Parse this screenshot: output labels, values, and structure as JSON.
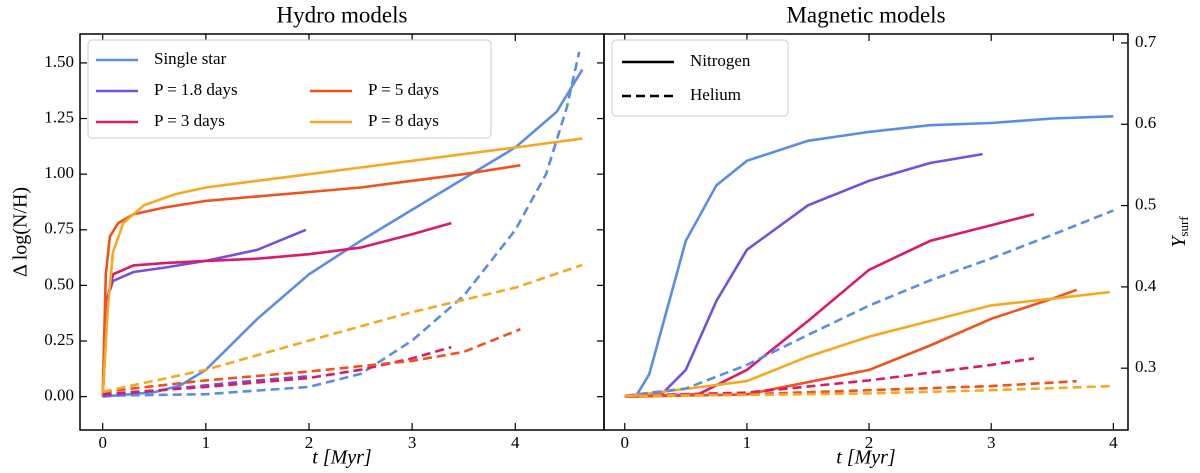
{
  "chart_data": [
    {
      "type": "line",
      "title": "Hydro models",
      "xlabel": "t [Myr]",
      "ylabel": "Δ log(N/H)",
      "xlim": [
        -0.22,
        4.86
      ],
      "ylim": [
        -0.15,
        1.63
      ],
      "y2lim": [
        0.224,
        0.711
      ],
      "xticks": [
        0,
        1,
        2,
        3,
        4
      ],
      "yticks": [
        {
          "value": 0,
          "label": "0.00"
        },
        0.25,
        {
          "value": 0.5,
          "label": "0.50"
        },
        0.75,
        {
          "value": 1,
          "label": "1.00"
        },
        1.25,
        {
          "value": 1.5,
          "label": "1.50"
        }
      ],
      "legend": "upper left",
      "series": [
        {
          "name": "Single star",
          "color": "#5b8de6",
          "dash": false,
          "x": [
            0,
            0.5,
            0.75,
            1,
            1.5,
            2,
            2.5,
            3,
            3.5,
            4,
            4.4,
            4.65
          ],
          "values": [
            0,
            0.02,
            0.05,
            0.12,
            0.35,
            0.55,
            0.7,
            0.84,
            0.98,
            1.12,
            1.28,
            1.47
          ]
        },
        {
          "name": "P = 1.8 days",
          "color": "#7450e0",
          "dash": false,
          "x": [
            0,
            0.05,
            0.1,
            0.3,
            0.6,
            1,
            1.5,
            1.97
          ],
          "values": [
            0,
            0.45,
            0.52,
            0.56,
            0.58,
            0.61,
            0.66,
            0.75
          ]
        },
        {
          "name": "P = 3 days",
          "color": "#d81b6a",
          "dash": false,
          "x": [
            0,
            0.05,
            0.1,
            0.3,
            0.6,
            1,
            1.5,
            2,
            2.5,
            3,
            3.38
          ],
          "values": [
            0,
            0.45,
            0.55,
            0.59,
            0.6,
            0.61,
            0.62,
            0.64,
            0.67,
            0.73,
            0.78
          ]
        },
        {
          "name": "P = 5 days",
          "color": "#f0521c",
          "dash": false,
          "x": [
            0,
            0.03,
            0.07,
            0.15,
            0.3,
            0.6,
            1,
            1.5,
            2,
            2.5,
            3,
            3.5,
            4.05
          ],
          "values": [
            0,
            0.55,
            0.72,
            0.78,
            0.82,
            0.85,
            0.88,
            0.9,
            0.92,
            0.94,
            0.97,
            1.0,
            1.04
          ]
        },
        {
          "name": "P = 8 days",
          "color": "#f7a823",
          "dash": false,
          "x": [
            0,
            0.05,
            0.1,
            0.2,
            0.4,
            0.7,
            1,
            1.5,
            2,
            2.5,
            3,
            3.5,
            4,
            4.65
          ],
          "values": [
            0,
            0.4,
            0.65,
            0.78,
            0.86,
            0.91,
            0.94,
            0.97,
            1.0,
            1.03,
            1.06,
            1.09,
            1.12,
            1.16
          ]
        },
        {
          "color": "#5b8de6",
          "dash": true,
          "axis": "y2",
          "x": [
            0,
            1,
            2,
            2.5,
            3,
            3.5,
            4,
            4.3,
            4.5,
            4.62
          ],
          "values": [
            0.266,
            0.268,
            0.277,
            0.293,
            0.334,
            0.389,
            0.47,
            0.539,
            0.621,
            0.689
          ]
        },
        {
          "color": "#7450e0",
          "dash": true,
          "axis": "y2",
          "x": [
            0,
            0.5,
            1,
            1.5,
            2
          ],
          "values": [
            0.266,
            0.272,
            0.279,
            0.285,
            0.29
          ]
        },
        {
          "color": "#d81b6a",
          "dash": true,
          "axis": "y2",
          "x": [
            0,
            1,
            2,
            2.5,
            3,
            3.38
          ],
          "values": [
            0.268,
            0.277,
            0.288,
            0.298,
            0.312,
            0.326
          ]
        },
        {
          "color": "#f0521c",
          "dash": true,
          "axis": "y2",
          "x": [
            0,
            1,
            2,
            3,
            3.5,
            4.05
          ],
          "values": [
            0.271,
            0.285,
            0.296,
            0.309,
            0.32,
            0.348
          ]
        },
        {
          "color": "#f7a823",
          "dash": true,
          "axis": "y2",
          "x": [
            0,
            1,
            2,
            3,
            4,
            4.65
          ],
          "values": [
            0.271,
            0.298,
            0.334,
            0.369,
            0.399,
            0.427
          ]
        }
      ]
    },
    {
      "type": "line",
      "title": "Magnetic models",
      "xlabel": "t [Myr]",
      "y2label": {
        "main": "Y",
        "sub": "surf"
      },
      "xlim": [
        -0.17,
        4.12
      ],
      "ylim": [
        -0.15,
        1.63
      ],
      "y2lim": [
        0.224,
        0.711
      ],
      "xticks": [
        0,
        1,
        2,
        3,
        4
      ],
      "y2ticks": [
        0.3,
        0.4,
        0.5,
        0.6,
        0.7
      ],
      "legend": "upper left",
      "legend_items": [
        {
          "label": "Nitrogen",
          "dash": false
        },
        {
          "label": "Helium",
          "dash": true
        }
      ],
      "series": [
        {
          "color": "#5b8de6",
          "dash": false,
          "x": [
            0,
            0.1,
            0.2,
            0.3,
            0.5,
            0.75,
            1,
            1.5,
            2,
            2.5,
            3,
            3.5,
            4
          ],
          "values": [
            0,
            0.01,
            0.1,
            0.3,
            0.7,
            0.95,
            1.06,
            1.15,
            1.19,
            1.22,
            1.23,
            1.25,
            1.26
          ]
        },
        {
          "color": "#7450e0",
          "dash": false,
          "x": [
            0,
            0.3,
            0.5,
            0.75,
            1,
            1.5,
            2,
            2.5,
            2.93
          ],
          "values": [
            0,
            0.01,
            0.12,
            0.43,
            0.66,
            0.86,
            0.97,
            1.05,
            1.09
          ]
        },
        {
          "color": "#d81b6a",
          "dash": false,
          "x": [
            0,
            0.6,
            1,
            1.5,
            2,
            2.5,
            3,
            3.35
          ],
          "values": [
            0,
            0.01,
            0.12,
            0.34,
            0.57,
            0.7,
            0.77,
            0.82
          ]
        },
        {
          "color": "#f0521c",
          "dash": false,
          "x": [
            0,
            1,
            2,
            2.5,
            3,
            3.5,
            3.7
          ],
          "values": [
            0,
            0.01,
            0.12,
            0.23,
            0.35,
            0.44,
            0.48
          ]
        },
        {
          "color": "#f7a823",
          "dash": false,
          "x": [
            0,
            1,
            1.5,
            2,
            2.5,
            3,
            3.5,
            3.97
          ],
          "values": [
            0,
            0.07,
            0.18,
            0.27,
            0.34,
            0.41,
            0.44,
            0.47
          ]
        },
        {
          "color": "#5b8de6",
          "dash": true,
          "axis": "y2",
          "x": [
            0,
            0.5,
            1,
            1.5,
            2,
            2.5,
            3,
            3.5,
            4
          ],
          "values": [
            0.266,
            0.275,
            0.304,
            0.341,
            0.377,
            0.408,
            0.435,
            0.464,
            0.494
          ]
        },
        {
          "color": "#d81b6a",
          "dash": true,
          "axis": "y2",
          "x": [
            0,
            1,
            2,
            3,
            3.35
          ],
          "values": [
            0.266,
            0.27,
            0.285,
            0.304,
            0.312
          ]
        },
        {
          "color": "#f0521c",
          "dash": true,
          "axis": "y2",
          "x": [
            0,
            1,
            2,
            3,
            3.7
          ],
          "values": [
            0.266,
            0.268,
            0.273,
            0.278,
            0.284
          ]
        },
        {
          "color": "#f7a823",
          "dash": true,
          "axis": "y2",
          "x": [
            0,
            1,
            2,
            3,
            4
          ],
          "values": [
            0.266,
            0.267,
            0.269,
            0.273,
            0.278
          ]
        }
      ]
    }
  ]
}
